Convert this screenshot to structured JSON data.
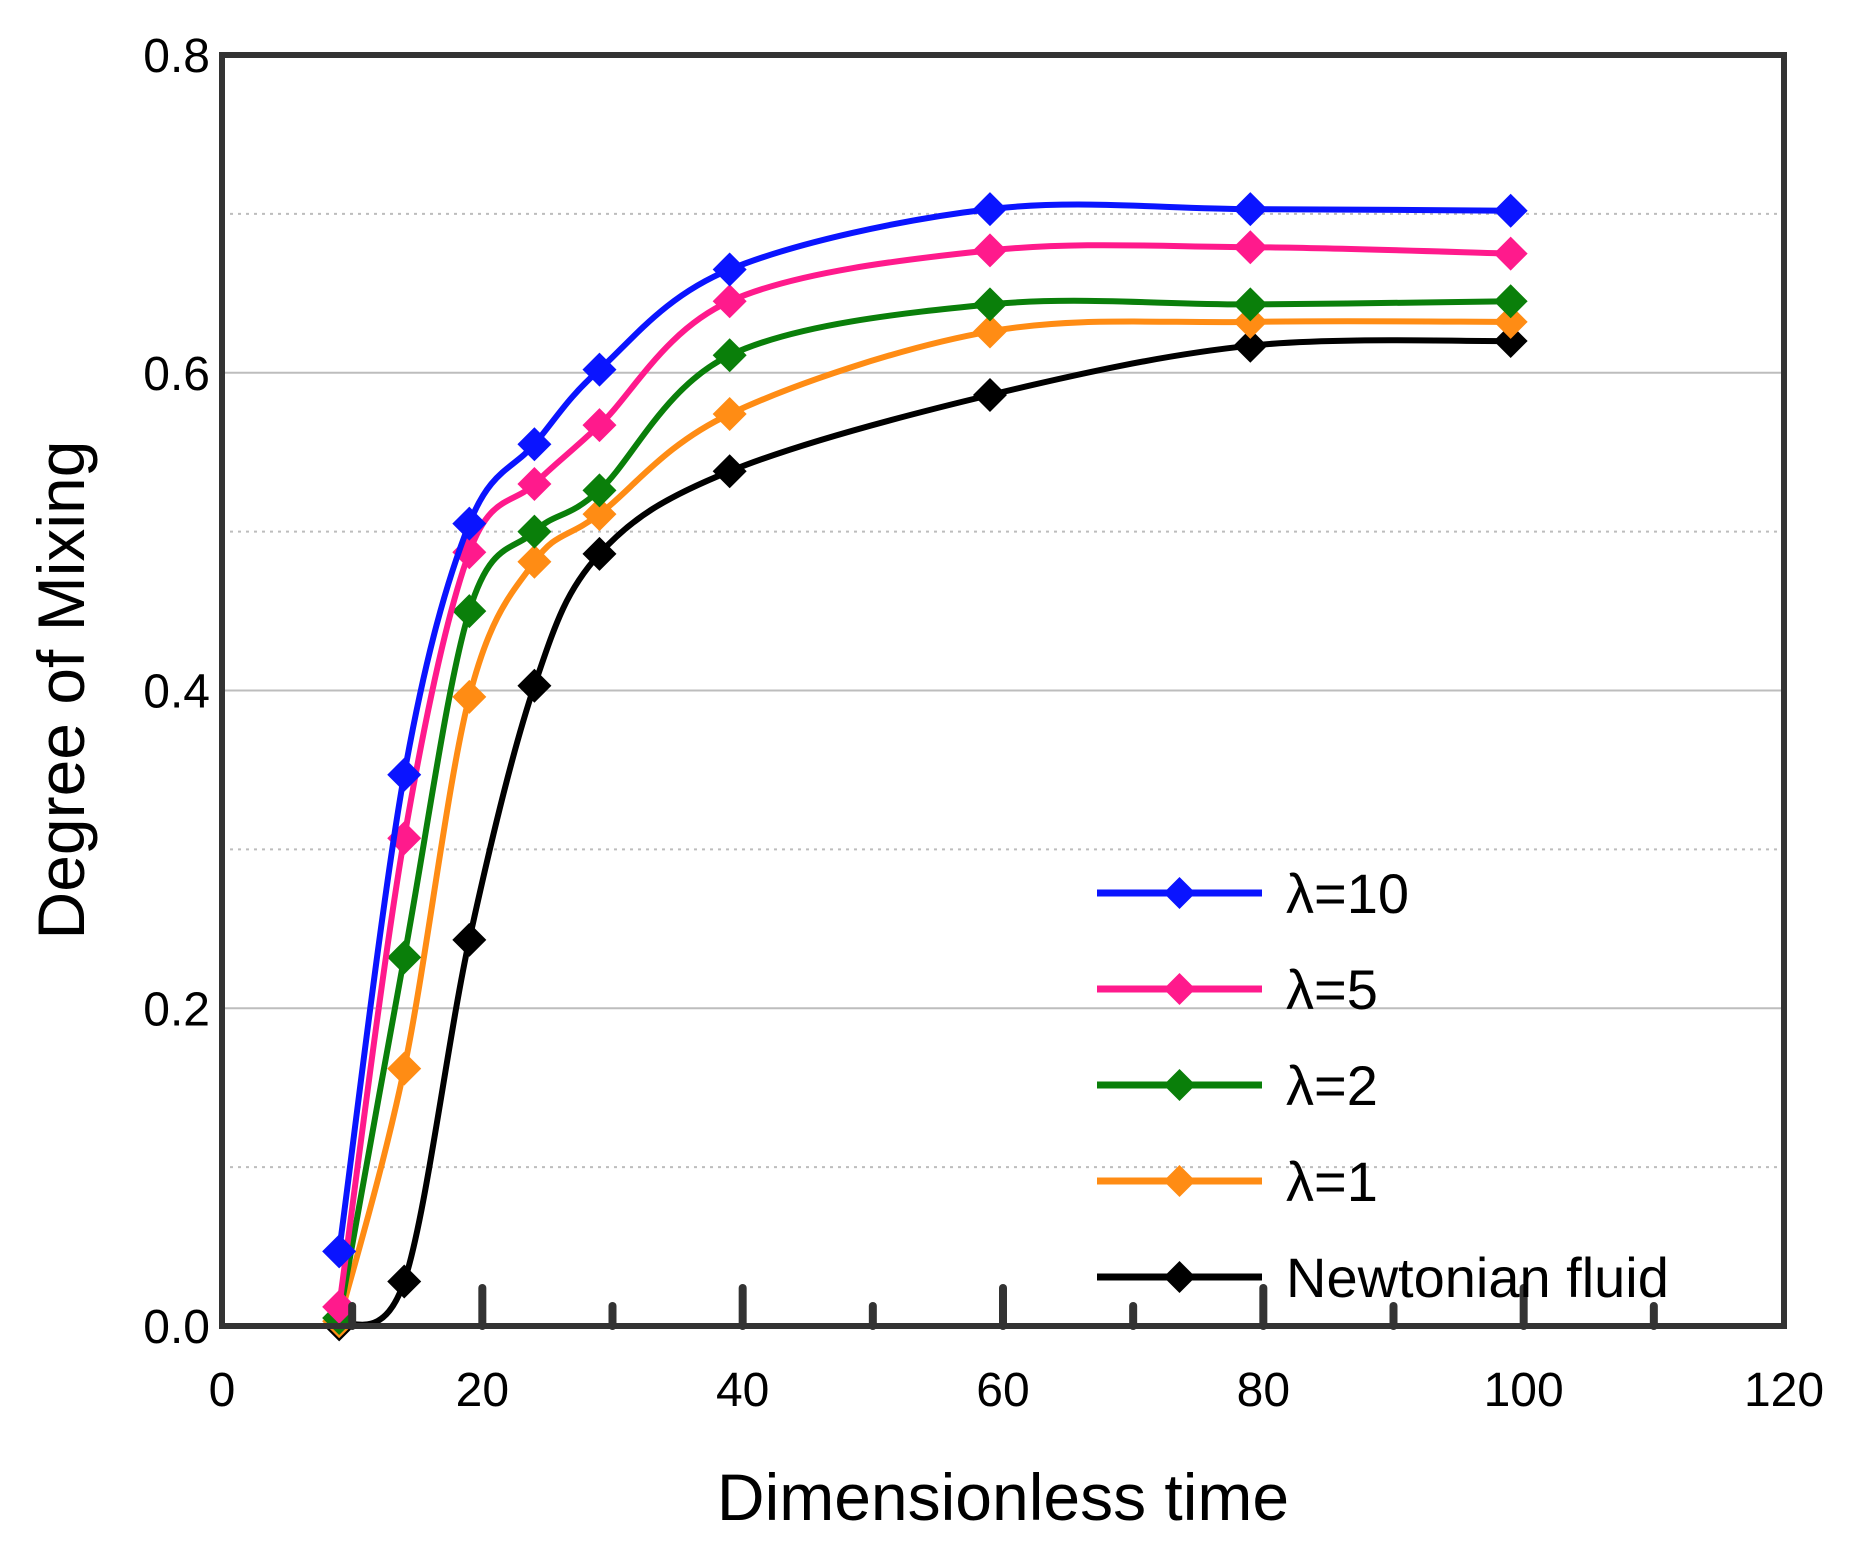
{
  "chart_data": {
    "type": "line",
    "title": "",
    "xlabel": "Dimensionless time",
    "ylabel": "Degree of Mixing",
    "xlim": [
      0,
      120
    ],
    "ylim": [
      0,
      0.8
    ],
    "xticks": [
      "0",
      "20",
      "40",
      "60",
      "80",
      "100",
      "120"
    ],
    "yticks": [
      "0.0",
      "0.2",
      "0.4",
      "0.6",
      "0.8"
    ],
    "grid": "horizontal",
    "legend_position": "bottom-right",
    "series": [
      {
        "name": "λ=10",
        "color": "#0a14ff",
        "x": [
          9,
          14,
          19,
          24,
          29,
          39,
          59,
          79,
          99
        ],
        "y": [
          0.047,
          0.347,
          0.505,
          0.555,
          0.602,
          0.665,
          0.703,
          0.703,
          0.702
        ]
      },
      {
        "name": "λ=5",
        "color": "#ff1a8c",
        "x": [
          9,
          14,
          19,
          24,
          29,
          39,
          59,
          79,
          99
        ],
        "y": [
          0.012,
          0.307,
          0.487,
          0.53,
          0.567,
          0.645,
          0.677,
          0.679,
          0.675
        ]
      },
      {
        "name": "λ=2",
        "color": "#0a7f0a",
        "x": [
          9,
          14,
          19,
          24,
          29,
          39,
          59,
          79,
          99
        ],
        "y": [
          0.005,
          0.232,
          0.45,
          0.5,
          0.526,
          0.611,
          0.643,
          0.643,
          0.645
        ]
      },
      {
        "name": "λ=1",
        "color": "#ff8c14",
        "x": [
          9,
          14,
          19,
          24,
          29,
          39,
          59,
          79,
          99
        ],
        "y": [
          0.003,
          0.162,
          0.396,
          0.481,
          0.511,
          0.574,
          0.626,
          0.632,
          0.632
        ]
      },
      {
        "name": "Newtonian fluid",
        "color": "#000000",
        "x": [
          9,
          14,
          19,
          24,
          29,
          39,
          59,
          79,
          99
        ],
        "y": [
          0.001,
          0.028,
          0.243,
          0.403,
          0.486,
          0.538,
          0.586,
          0.617,
          0.62
        ]
      }
    ]
  }
}
